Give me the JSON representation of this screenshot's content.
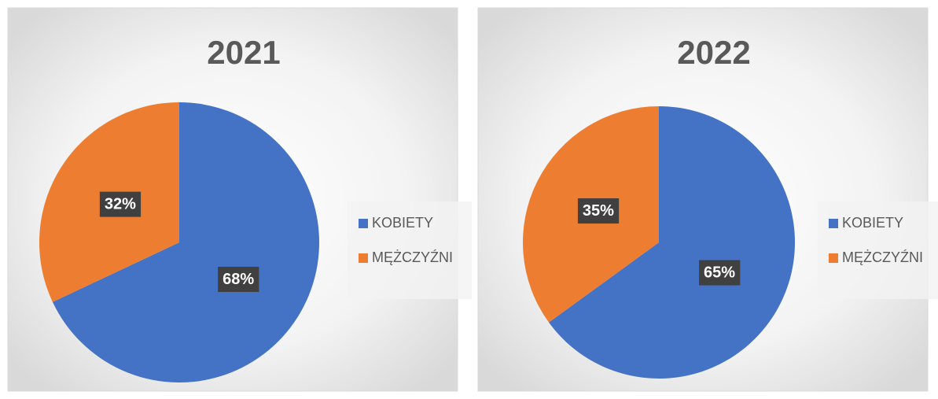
{
  "chart_data": [
    {
      "type": "pie",
      "title": "2021",
      "categories": [
        "KOBIETY",
        "MĘŻCZYŹNI"
      ],
      "values": [
        68,
        32
      ],
      "value_labels": [
        "68%",
        "32%"
      ],
      "colors": [
        "#4472c4",
        "#ed7d31"
      ],
      "legend": "right"
    },
    {
      "type": "pie",
      "title": "2022",
      "categories": [
        "KOBIETY",
        "MĘŻCZYŹNI"
      ],
      "values": [
        65,
        35
      ],
      "value_labels": [
        "65%",
        "35%"
      ],
      "colors": [
        "#4472c4",
        "#ed7d31"
      ],
      "legend": "right"
    }
  ]
}
